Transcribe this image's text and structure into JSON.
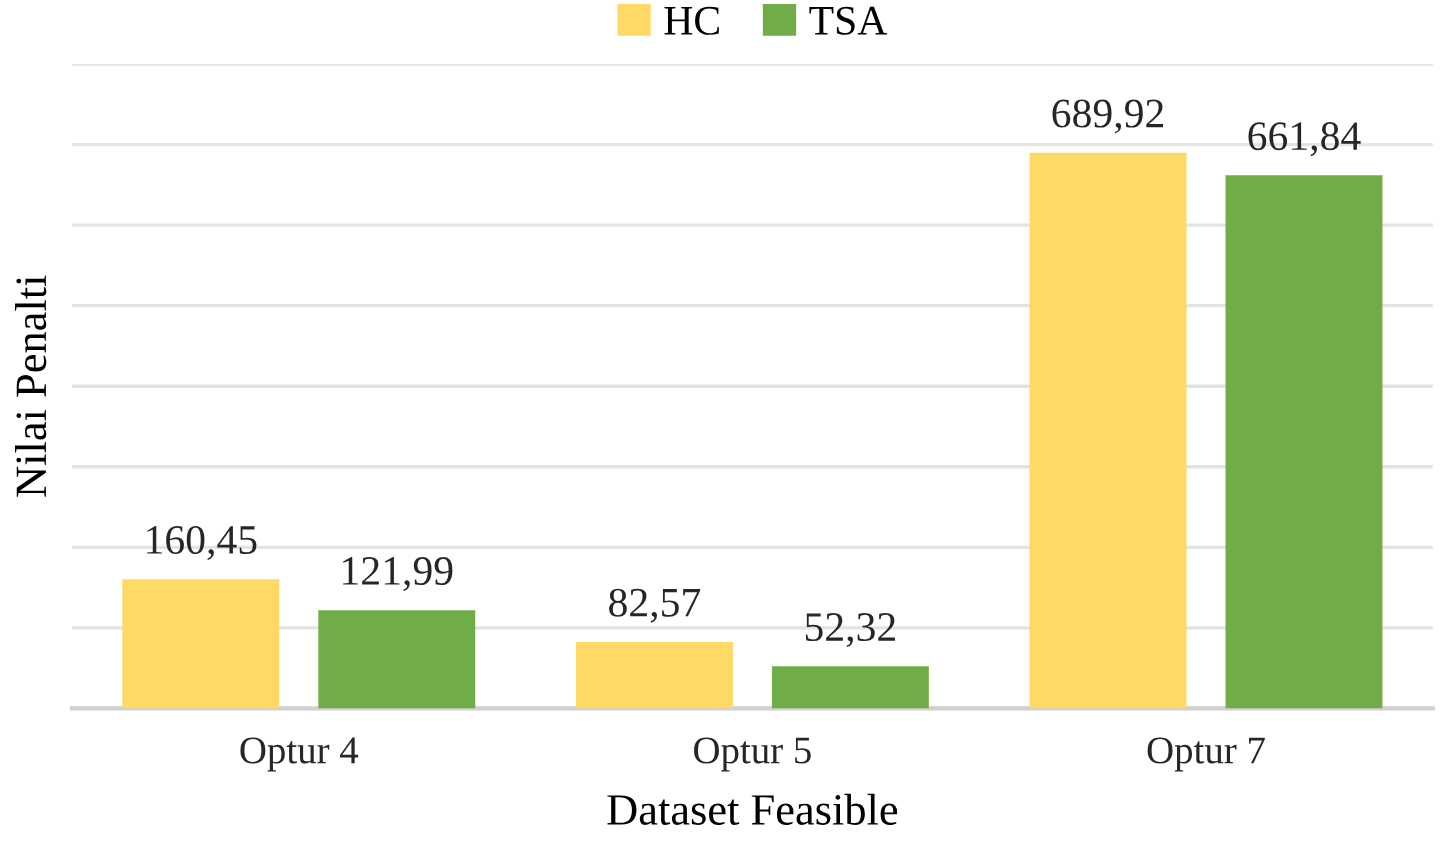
{
  "chart_data": {
    "type": "bar",
    "xlabel": "Dataset Feasible",
    "ylabel": "Nilai Penalti",
    "categories": [
      "Optur 4",
      "Optur 5",
      "Optur 7"
    ],
    "series": [
      {
        "name": "HC",
        "color": "#ffd966",
        "values": [
          160.45,
          82.57,
          689.92
        ],
        "value_labels": [
          "160,45",
          "82,57",
          "689,92"
        ]
      },
      {
        "name": "TSA",
        "color": "#70ad47",
        "values": [
          121.99,
          52.32,
          661.84
        ],
        "value_labels": [
          "121,99",
          "52,32",
          "661,84"
        ]
      }
    ],
    "ylim": [
      0,
      800
    ],
    "yticks": [
      {
        "value": 0,
        "label": null
      },
      {
        "value": 100,
        "label": null
      },
      {
        "value": 200,
        "label": null
      },
      {
        "value": 300,
        "label": null
      },
      {
        "value": 400,
        "label": null
      },
      {
        "value": 500,
        "label": null
      },
      {
        "value": 600,
        "label": null
      },
      {
        "value": 700,
        "label": null
      },
      {
        "value": 800,
        "label": null
      }
    ],
    "grid": "y",
    "legend": "top",
    "tick_labels": "x"
  }
}
